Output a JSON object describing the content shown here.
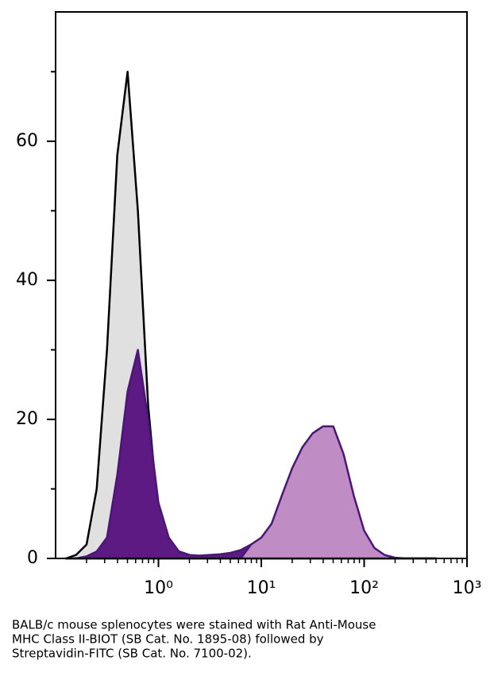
{
  "chart_data": {
    "type": "histogram-overlay",
    "x": [
      0.126,
      0.158,
      0.2,
      0.251,
      0.316,
      0.398,
      0.501,
      0.631,
      0.794,
      1,
      1.26,
      1.58,
      2,
      2.51,
      3.16,
      3.98,
      5.01,
      6.31,
      7.94,
      10,
      12.6,
      15.8,
      20,
      25.1,
      31.6,
      39.8,
      50.1,
      63.1,
      79.4,
      100,
      126,
      158,
      200,
      251,
      316,
      398,
      501
    ],
    "series": [
      {
        "color": "#e0e0e0",
        "stroke": "#000000",
        "values": [
          0,
          0.5,
          2,
          10,
          30,
          58,
          70,
          50,
          22,
          6,
          2,
          1,
          0.5,
          0.3,
          0.3,
          0.2,
          0.2,
          0.1,
          0.1,
          0,
          0,
          0,
          0,
          0,
          0,
          0,
          0,
          0,
          0,
          0,
          0,
          0,
          0,
          0,
          0,
          0,
          0
        ]
      },
      {
        "color": "#5c1a82",
        "stroke": "#4b1678",
        "values": [
          0,
          0,
          0.3,
          1,
          3,
          12,
          24,
          30,
          20,
          8,
          3,
          1,
          0.5,
          0.4,
          0.5,
          0.6,
          0.8,
          1.2,
          2,
          0,
          0,
          0,
          0,
          0,
          0,
          0,
          0,
          0,
          0,
          0,
          0,
          0,
          0,
          0,
          0,
          0,
          0
        ]
      },
      {
        "color": "#c08cc4",
        "stroke": "#4b1678",
        "values": [
          0,
          0,
          0,
          0,
          0,
          0,
          0,
          0,
          0,
          0,
          0,
          0,
          0,
          0,
          0,
          0,
          0,
          0,
          2,
          3,
          5,
          9,
          13,
          16,
          18,
          19,
          19,
          15,
          9,
          4,
          1.5,
          0.5,
          0.1,
          0,
          0,
          0,
          0
        ]
      }
    ],
    "xlim": [
      0.1,
      1000
    ],
    "xscale": "log",
    "xticks": [
      {
        "value": 1,
        "label": "10⁰"
      },
      {
        "value": 10,
        "label": "10¹"
      },
      {
        "value": 100,
        "label": "10²"
      },
      {
        "value": 1000,
        "label": "10³"
      }
    ],
    "minor_xticks": [
      0.2,
      0.3,
      0.4,
      0.5,
      0.6,
      0.7,
      0.8,
      0.9,
      2,
      3,
      4,
      5,
      6,
      7,
      8,
      9,
      20,
      30,
      40,
      50,
      60,
      70,
      80,
      90,
      200,
      300,
      400,
      500,
      600,
      700,
      800,
      900
    ],
    "ylim": [
      0,
      78.6
    ],
    "yticks": [
      0,
      20,
      40,
      60
    ],
    "minor_yticks": [
      10,
      30,
      50,
      70
    ],
    "caption": [
      "BALB/c mouse splenocytes were stained with Rat Anti-Mouse",
      "MHC Class II-BIOT (SB Cat. No. 1895-08) followed by",
      "Streptavidin-FITC (SB Cat. No. 7100-02)."
    ]
  }
}
